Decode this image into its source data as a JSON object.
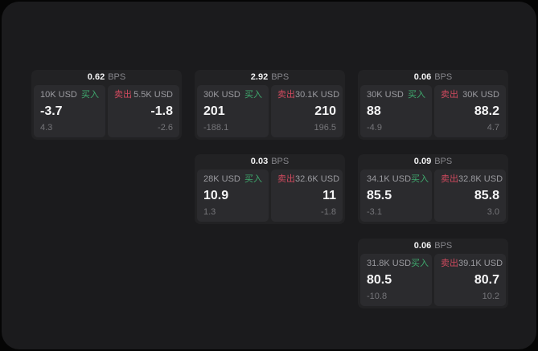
{
  "window": {
    "background": "#1b1b1d",
    "backdrop": "#050505"
  },
  "colors": {
    "card_bg": "#222224",
    "panel_bg": "#2b2b2e",
    "text_primary": "#f5f5f6",
    "text_muted": "#9b9ba0",
    "text_dim": "#757579",
    "buy_green": "#3fa96e",
    "sell_red": "#cf4a5e"
  },
  "labels": {
    "bps_unit": "BPS",
    "buy": "买入",
    "sell": "卖出"
  },
  "cards": [
    {
      "col": 1,
      "row": 1,
      "bps": "0.62",
      "buy": {
        "amount": "10K USD",
        "price": "-3.7",
        "delta": "4.3"
      },
      "sell": {
        "amount": "5.5K USD",
        "price": "-1.8",
        "delta": "-2.6"
      }
    },
    {
      "col": 2,
      "row": 1,
      "bps": "2.92",
      "buy": {
        "amount": "30K USD",
        "price": "201",
        "delta": "-188.1"
      },
      "sell": {
        "amount": "30.1K USD",
        "price": "210",
        "delta": "196.5"
      }
    },
    {
      "col": 3,
      "row": 1,
      "bps": "0.06",
      "buy": {
        "amount": "30K USD",
        "price": "88",
        "delta": "-4.9"
      },
      "sell": {
        "amount": "30K USD",
        "price": "88.2",
        "delta": "4.7"
      }
    },
    {
      "col": 2,
      "row": 2,
      "bps": "0.03",
      "buy": {
        "amount": "28K USD",
        "price": "10.9",
        "delta": "1.3"
      },
      "sell": {
        "amount": "32.6K USD",
        "price": "11",
        "delta": "-1.8"
      }
    },
    {
      "col": 3,
      "row": 2,
      "bps": "0.09",
      "buy": {
        "amount": "34.1K USD",
        "price": "85.5",
        "delta": "-3.1"
      },
      "sell": {
        "amount": "32.8K USD",
        "price": "85.8",
        "delta": "3.0"
      }
    },
    {
      "col": 3,
      "row": 3,
      "bps": "0.06",
      "buy": {
        "amount": "31.8K USD",
        "price": "80.5",
        "delta": "-10.8"
      },
      "sell": {
        "amount": "39.1K USD",
        "price": "80.7",
        "delta": "10.2"
      }
    }
  ]
}
